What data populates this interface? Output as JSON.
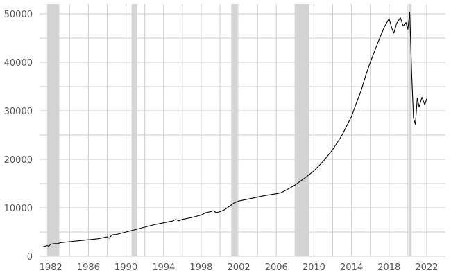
{
  "chart_data": {
    "type": "line",
    "title": "",
    "xlabel": "",
    "ylabel": "",
    "xlim": [
      1980.8,
      2024
    ],
    "ylim": [
      0,
      52000
    ],
    "grid": true,
    "legend": "none",
    "colors": {
      "line": "#000000",
      "grid": "#cccccc",
      "band": "#d4d4d4",
      "tick_text": "#555555"
    },
    "x_ticks": [
      {
        "value": 1982,
        "label": "1982"
      },
      {
        "value": 1986,
        "label": "1986"
      },
      {
        "value": 1990,
        "label": "1990"
      },
      {
        "value": 1994,
        "label": "1994"
      },
      {
        "value": 1998,
        "label": "1998"
      },
      {
        "value": 2002,
        "label": "2002"
      },
      {
        "value": 2006,
        "label": "2006"
      },
      {
        "value": 2010,
        "label": "2010"
      },
      {
        "value": 2014,
        "label": "2014"
      },
      {
        "value": 2018,
        "label": "2018"
      },
      {
        "value": 2022,
        "label": "2022"
      }
    ],
    "y_ticks": [
      {
        "value": 0,
        "label": "0"
      },
      {
        "value": 10000,
        "label": "10000"
      },
      {
        "value": 20000,
        "label": "20000"
      },
      {
        "value": 30000,
        "label": "30000"
      },
      {
        "value": 40000,
        "label": "40000"
      },
      {
        "value": 50000,
        "label": "50000"
      }
    ],
    "recessions": [
      {
        "start": 1981.6,
        "end": 1982.9
      },
      {
        "start": 1990.6,
        "end": 1991.2
      },
      {
        "start": 2001.2,
        "end": 2001.9
      },
      {
        "start": 2007.95,
        "end": 2009.5
      },
      {
        "start": 2020.1,
        "end": 2020.4
      }
    ],
    "series": [
      {
        "points": [
          [
            1981.2,
            2000
          ],
          [
            1981.6,
            2200
          ],
          [
            1981.8,
            2100
          ],
          [
            1982.0,
            2500
          ],
          [
            1982.4,
            2600
          ],
          [
            1982.8,
            2600
          ],
          [
            1983.0,
            2800
          ],
          [
            1984.0,
            3000
          ],
          [
            1985.0,
            3200
          ],
          [
            1986.0,
            3400
          ],
          [
            1987.0,
            3600
          ],
          [
            1987.5,
            3800
          ],
          [
            1988.0,
            4000
          ],
          [
            1988.2,
            3700
          ],
          [
            1988.5,
            4400
          ],
          [
            1989.0,
            4500
          ],
          [
            1990.0,
            5000
          ],
          [
            1991.0,
            5500
          ],
          [
            1992.0,
            6000
          ],
          [
            1993.0,
            6500
          ],
          [
            1994.0,
            6900
          ],
          [
            1995.0,
            7300
          ],
          [
            1995.3,
            7600
          ],
          [
            1995.6,
            7300
          ],
          [
            1996.0,
            7600
          ],
          [
            1997.0,
            8000
          ],
          [
            1998.0,
            8500
          ],
          [
            1998.5,
            9000
          ],
          [
            1999.0,
            9200
          ],
          [
            1999.3,
            9400
          ],
          [
            1999.6,
            9000
          ],
          [
            2000.0,
            9200
          ],
          [
            2000.5,
            9600
          ],
          [
            2001.0,
            10300
          ],
          [
            2001.5,
            11000
          ],
          [
            2002.0,
            11400
          ],
          [
            2003.0,
            11800
          ],
          [
            2004.0,
            12200
          ],
          [
            2005.0,
            12600
          ],
          [
            2006.0,
            12900
          ],
          [
            2006.5,
            13100
          ],
          [
            2007.0,
            13600
          ],
          [
            2008.0,
            14700
          ],
          [
            2009.0,
            16100
          ],
          [
            2010.0,
            17600
          ],
          [
            2011.0,
            19600
          ],
          [
            2012.0,
            22000
          ],
          [
            2013.0,
            25000
          ],
          [
            2014.0,
            28800
          ],
          [
            2014.5,
            31500
          ],
          [
            2015.0,
            34000
          ],
          [
            2015.5,
            37200
          ],
          [
            2016.0,
            40000
          ],
          [
            2016.5,
            42500
          ],
          [
            2017.0,
            45000
          ],
          [
            2017.5,
            47300
          ],
          [
            2018.0,
            49000
          ],
          [
            2018.3,
            47000
          ],
          [
            2018.5,
            46000
          ],
          [
            2018.8,
            48000
          ],
          [
            2019.2,
            49200
          ],
          [
            2019.5,
            47500
          ],
          [
            2019.8,
            48200
          ],
          [
            2020.0,
            46800
          ],
          [
            2020.2,
            50300
          ],
          [
            2020.4,
            38000
          ],
          [
            2020.6,
            28500
          ],
          [
            2020.8,
            27200
          ],
          [
            2021.0,
            32600
          ],
          [
            2021.2,
            30800
          ],
          [
            2021.5,
            32800
          ],
          [
            2021.8,
            31200
          ],
          [
            2022.0,
            32500
          ]
        ]
      }
    ]
  }
}
